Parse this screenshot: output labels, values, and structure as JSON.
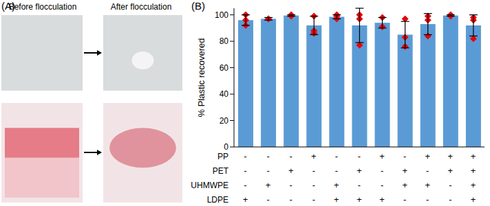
{
  "panel_a": {
    "label": "(A)",
    "captions": [
      "Before flocculation",
      "After flocculation"
    ]
  },
  "chart_data": {
    "type": "bar",
    "panel_label": "(B)",
    "y_label": "% Plastic recovered",
    "categories": [
      null,
      null,
      null,
      null,
      null,
      null,
      null,
      null,
      null,
      null,
      null
    ],
    "series": [
      {
        "type": "bar",
        "color": "#5b9bd5",
        "values": [
          96,
          97,
          99.5,
          92,
          98.5,
          92,
          94,
          85,
          93,
          99.5,
          92
        ],
        "error": [
          4,
          1,
          0.5,
          7,
          1.5,
          13,
          4,
          10,
          8,
          0.5,
          8
        ]
      },
      {
        "type": "scatter",
        "marker": "diamond",
        "color": "#e8000b",
        "points": [
          [
            100,
            96,
            92
          ],
          [
            97,
            97
          ],
          [
            100,
            99
          ],
          [
            99,
            88,
            86
          ],
          [
            100,
            99,
            97
          ],
          [
            100,
            97,
            77
          ],
          [
            98,
            91
          ],
          [
            97,
            83,
            76
          ],
          [
            99,
            96,
            84
          ],
          [
            100,
            99
          ],
          [
            98,
            96,
            82
          ]
        ]
      }
    ],
    "ylim": [
      0,
      105
    ],
    "yticks": [
      0,
      20,
      40,
      60,
      80,
      100
    ],
    "grid": false,
    "tick_labels": "y",
    "matrix": {
      "rows": [
        {
          "label": "PP",
          "marks": [
            "-",
            "-",
            "-",
            "+",
            "-",
            "-",
            "+",
            "-",
            "+",
            "+",
            "+"
          ]
        },
        {
          "label": "PET",
          "marks": [
            "-",
            "-",
            "+",
            "-",
            "-",
            "+",
            "-",
            "+",
            "-",
            "+",
            "+"
          ]
        },
        {
          "label": "UHMWPE",
          "marks": [
            "-",
            "+",
            "-",
            "-",
            "+",
            "-",
            "-",
            "+",
            "+",
            "-",
            "+"
          ]
        },
        {
          "label": "LDPE",
          "marks": [
            "+",
            "-",
            "-",
            "-",
            "+",
            "+",
            "+",
            "-",
            "-",
            "-",
            "+"
          ]
        }
      ]
    }
  }
}
